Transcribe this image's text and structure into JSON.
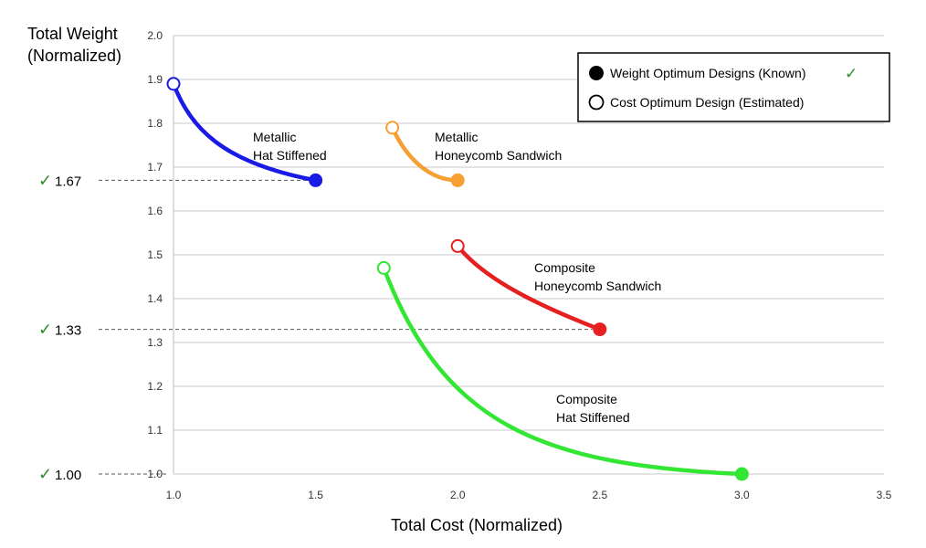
{
  "chart_data": {
    "type": "line",
    "ylabel_lines": [
      "Total Weight",
      "(Normalized)"
    ],
    "xlabel": "Total Cost (Normalized)",
    "xlim": [
      1.0,
      3.5
    ],
    "ylim": [
      1.0,
      2.0
    ],
    "xticks": [
      "1.0",
      "1.5",
      "2.0",
      "2.5",
      "3.0",
      "3.5"
    ],
    "yticks": [
      "1.0",
      "1.1",
      "1.2",
      "1.3",
      "1.4",
      "1.5",
      "1.6",
      "1.7",
      "1.8",
      "1.9",
      "2.0"
    ],
    "grid": "horizontal",
    "legend_position": "top-right",
    "legend": {
      "entries": [
        {
          "label": "Weight Optimum Designs (Known)",
          "marker": "filled",
          "check": "✓"
        },
        {
          "label": "Cost Optimum Design (Estimated)",
          "marker": "open"
        }
      ]
    },
    "series": [
      {
        "label_lines": [
          "Metallic",
          "Hat Stiffened"
        ],
        "color": "#1a1ae6",
        "cost_optimum": {
          "x": 1.0,
          "y": 1.89
        },
        "weight_optimum": {
          "x": 1.5,
          "y": 1.67
        },
        "curve": [
          [
            1.0,
            1.89
          ],
          [
            1.06,
            1.79
          ],
          [
            1.17,
            1.71
          ],
          [
            1.5,
            1.67
          ]
        ]
      },
      {
        "label_lines": [
          "Metallic",
          "Honeycomb Sandwich"
        ],
        "color": "#f5a030",
        "cost_optimum": {
          "x": 1.77,
          "y": 1.79
        },
        "weight_optimum": {
          "x": 2.0,
          "y": 1.67
        },
        "curve": [
          [
            1.77,
            1.79
          ],
          [
            1.82,
            1.72
          ],
          [
            1.9,
            1.67
          ],
          [
            2.0,
            1.67
          ]
        ]
      },
      {
        "label_lines": [
          "Composite",
          "Honeycomb Sandwich"
        ],
        "color": "#e62020",
        "cost_optimum": {
          "x": 2.0,
          "y": 1.52
        },
        "weight_optimum": {
          "x": 2.5,
          "y": 1.33
        },
        "curve": [
          [
            2.0,
            1.52
          ],
          [
            2.1,
            1.44
          ],
          [
            2.3,
            1.38
          ],
          [
            2.5,
            1.33
          ]
        ]
      },
      {
        "label_lines": [
          "Composite",
          "Hat Stiffened"
        ],
        "color": "#33e633",
        "cost_optimum": {
          "x": 1.74,
          "y": 1.47
        },
        "weight_optimum": {
          "x": 3.0,
          "y": 1.0
        },
        "curve": [
          [
            1.74,
            1.47
          ],
          [
            1.95,
            1.11
          ],
          [
            2.3,
            1.02
          ],
          [
            3.0,
            1.0
          ]
        ]
      }
    ],
    "reference_markers": [
      {
        "label": "1.67",
        "check": "✓",
        "y": 1.67,
        "x_end": 1.5
      },
      {
        "label": "1.33",
        "check": "✓",
        "y": 1.33,
        "x_end": 2.5
      },
      {
        "label": "1.00",
        "check": "✓",
        "y": 1.0,
        "x_end": 1.0
      }
    ]
  }
}
